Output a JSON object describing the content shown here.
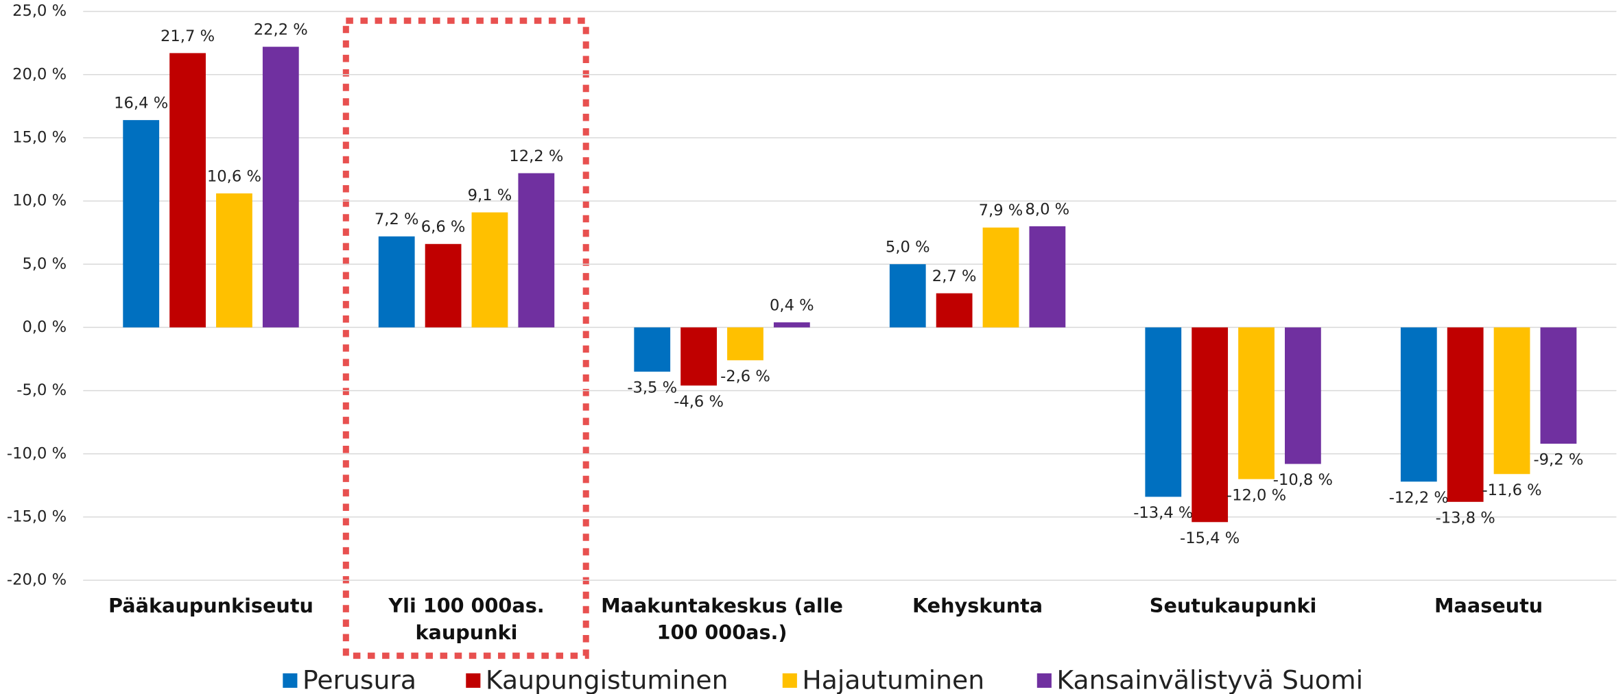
{
  "chart_data": {
    "type": "bar",
    "categories": [
      "Pääkaupunkiseutu",
      "Yli 100 000as. kaupunki",
      "Maakuntakeskus (alle 100 000as.)",
      "Kehyskunta",
      "Seutukaupunki",
      "Maaseutu"
    ],
    "series": [
      {
        "name": "Perusura",
        "color": "#0070c0",
        "values": [
          16.4,
          7.2,
          -3.5,
          5.0,
          -13.4,
          -12.2
        ],
        "value_labels": [
          "16,4 %",
          "7,2 %",
          "-3,5 %",
          "5,0 %",
          "-13,4 %",
          "-12,2 %"
        ]
      },
      {
        "name": "Kaupungistuminen",
        "color": "#c00000",
        "values": [
          21.7,
          6.6,
          -4.6,
          2.7,
          -15.4,
          -13.8
        ],
        "value_labels": [
          "21,7 %",
          "6,6 %",
          "-4,6 %",
          "2,7 %",
          "-15,4 %",
          "-13,8 %"
        ]
      },
      {
        "name": "Hajautuminen",
        "color": "#ffc000",
        "values": [
          10.6,
          9.1,
          -2.6,
          7.9,
          -12.0,
          -11.6
        ],
        "value_labels": [
          "10,6 %",
          "9,1 %",
          "-2,6 %",
          "7,9 %",
          "-12,0 %",
          "-11,6 %"
        ]
      },
      {
        "name": "Kansainvälistyvä Suomi",
        "color": "#7030a0",
        "values": [
          22.2,
          12.2,
          0.4,
          8.0,
          -10.8,
          -9.2
        ],
        "value_labels": [
          "22,2 %",
          "12,2 %",
          "0,4 %",
          "8,0 %",
          "-10,8 %",
          "-9,2 %"
        ]
      }
    ],
    "ylim": [
      -20,
      25
    ],
    "yticks": [
      {
        "value": -20,
        "label": "-20,0 %"
      },
      {
        "value": -15,
        "label": "-15,0 %"
      },
      {
        "value": -10,
        "label": "-10,0 %"
      },
      {
        "value": -5,
        "label": "-5,0 %"
      },
      {
        "value": 0,
        "label": "0,0 %"
      },
      {
        "value": 5,
        "label": "5,0 %"
      },
      {
        "value": 10,
        "label": "10,0 %"
      },
      {
        "value": 15,
        "label": "15,0 %"
      },
      {
        "value": 20,
        "label": "20,0 %"
      },
      {
        "value": 25,
        "label": "25,0 %"
      }
    ],
    "grid": true,
    "legend": "bottom"
  }
}
